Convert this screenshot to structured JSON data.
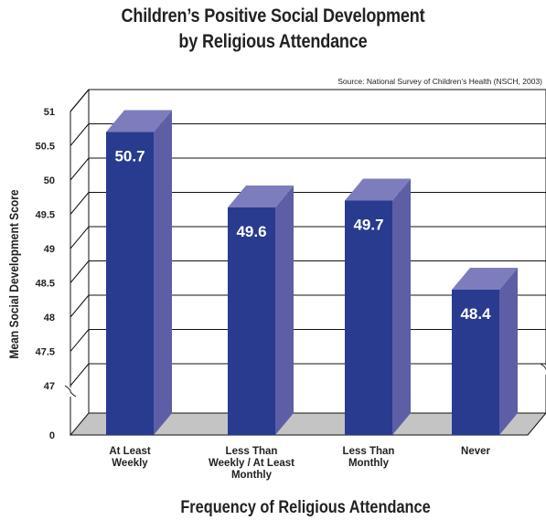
{
  "chart_data": {
    "type": "bar",
    "title": [
      "Children’s Positive Social Development",
      "by Religious Attendance"
    ],
    "source": "Source: National Survey of Children’s Health (NSCH, 2003)",
    "xlabel": "Frequency of Religious Attendance",
    "ylabel": "Mean Social Development Score",
    "categories": [
      [
        "At Least",
        "Weekly"
      ],
      [
        "Less Than",
        "Weekly / At Least",
        "Monthly"
      ],
      [
        "Less Than",
        "Monthly"
      ],
      [
        "Never"
      ]
    ],
    "values": [
      50.7,
      49.6,
      49.7,
      48.4
    ],
    "value_labels": [
      "50.7",
      "49.6",
      "49.7",
      "48.4"
    ],
    "yticks": [
      "51",
      "50.5",
      "50",
      "49.5",
      "49",
      "48.5",
      "48",
      "47.5",
      "47",
      "0"
    ],
    "ylim": [
      47,
      51
    ],
    "axis_break": true,
    "grid": true,
    "colors": {
      "bar_front": "#283b8f",
      "bar_side": "#5d5ea6",
      "bar_top": "#7d7dbd",
      "floor": "#c4c4c4",
      "value_label": "#ffffff"
    }
  }
}
